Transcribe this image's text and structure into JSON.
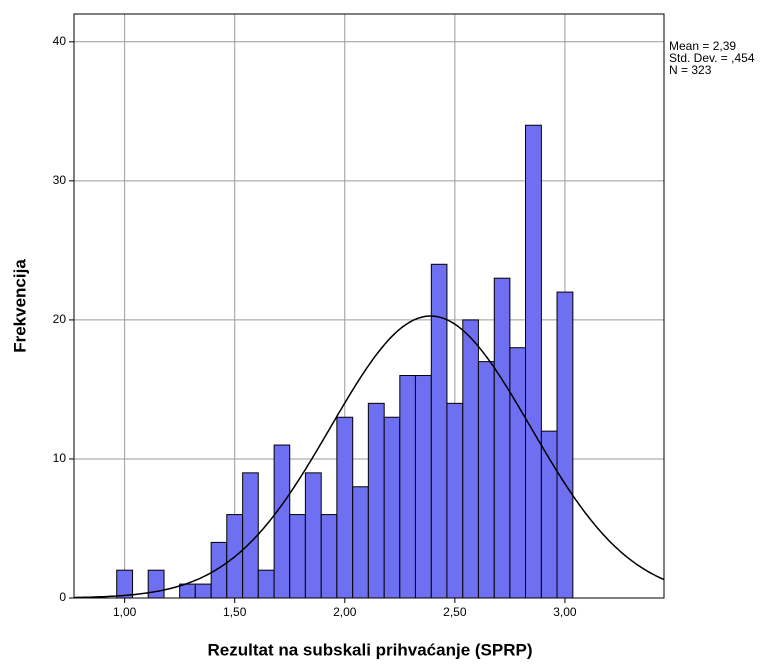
{
  "chart_data": {
    "type": "histogram",
    "xlabel": "Rezultat na subskali prihvaćanje (SPRP)",
    "ylabel": "Frekvencija",
    "bins": [
      0.964,
      1.036,
      1.107,
      1.179,
      1.25,
      1.321,
      1.393,
      1.464,
      1.536,
      1.607,
      1.679,
      1.75,
      1.821,
      1.893,
      1.964,
      2.036,
      2.107,
      2.179,
      2.25,
      2.321,
      2.393,
      2.464,
      2.536,
      2.607,
      2.679,
      2.75,
      2.821,
      2.893,
      2.964,
      3.036
    ],
    "counts": [
      2,
      0,
      2,
      0,
      1,
      1,
      4,
      6,
      9,
      2,
      11,
      6,
      9,
      6,
      13,
      8,
      14,
      13,
      16,
      16,
      24,
      14,
      20,
      17,
      23,
      18,
      34,
      12,
      22
    ],
    "color": "#6f6ff2",
    "xlim": [
      0.77,
      3.45
    ],
    "ylim": [
      0,
      42
    ],
    "xticks": [
      {
        "value": 1.0,
        "label": "1,00"
      },
      {
        "value": 1.5,
        "label": "1,50"
      },
      {
        "value": 2.0,
        "label": "2,00"
      },
      {
        "value": 2.5,
        "label": "2,50"
      },
      {
        "value": 3.0,
        "label": "3,00"
      }
    ],
    "yticks": [
      0,
      10,
      20,
      30,
      40
    ],
    "grid": true,
    "normal_curve": {
      "mean": 2.39,
      "sd": 0.454,
      "n": 323
    },
    "annotations": [
      "Mean = 2,39",
      "Std. Dev. = ,454",
      "N = 323"
    ]
  }
}
